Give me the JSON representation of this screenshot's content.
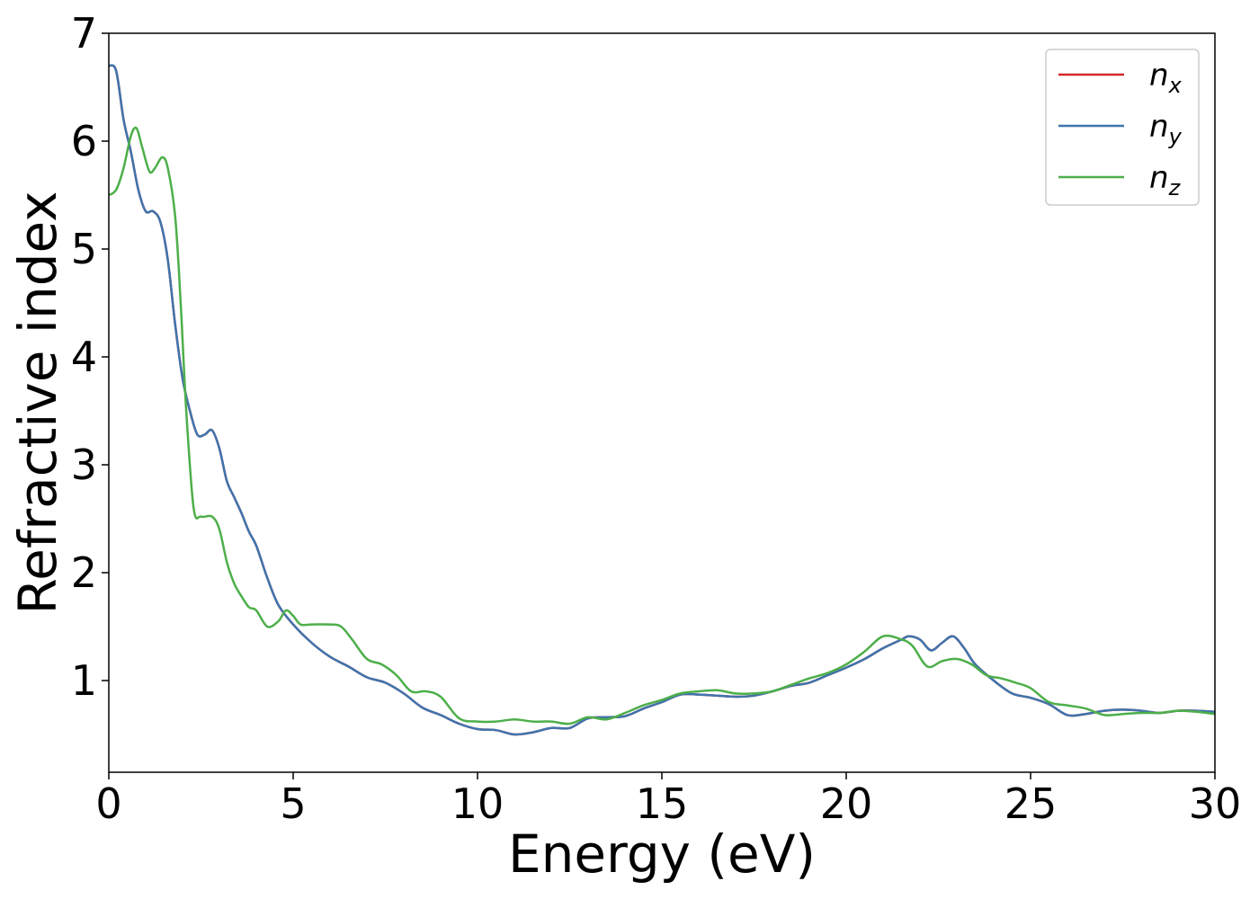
{
  "chart_data": {
    "type": "line",
    "xlabel": "Energy (eV)",
    "ylabel": "Refractive index",
    "xlim": [
      0,
      30
    ],
    "ylim": [
      0.15,
      7.0
    ],
    "xticks": [
      0,
      5,
      10,
      15,
      20,
      25,
      30
    ],
    "yticks": [
      1,
      2,
      3,
      4,
      5,
      6,
      7
    ],
    "grid": false,
    "legend_position": "top-right",
    "series": [
      {
        "name": "n_x",
        "label_main": "n",
        "label_sub": "x",
        "color": "#d62728",
        "x": [
          0,
          0.2,
          0.4,
          0.6,
          0.8,
          1.0,
          1.2,
          1.4,
          1.6,
          1.8,
          2.0,
          2.2,
          2.4,
          2.6,
          2.8,
          3.0,
          3.2,
          3.4,
          3.6,
          3.8,
          4.0,
          4.3,
          4.6,
          5.0,
          5.5,
          6.0,
          6.5,
          7.0,
          7.5,
          8.0,
          8.5,
          9.0,
          9.5,
          10.0,
          10.5,
          11.0,
          11.5,
          12.0,
          12.5,
          13.0,
          13.5,
          14.0,
          14.5,
          15.0,
          15.5,
          16.0,
          16.5,
          17.0,
          17.5,
          18.0,
          18.5,
          19.0,
          19.5,
          20.0,
          20.5,
          21.0,
          21.5,
          21.7,
          22.0,
          22.3,
          22.6,
          22.9,
          23.2,
          23.5,
          24.0,
          24.5,
          25.0,
          25.5,
          26.0,
          26.5,
          27.0,
          27.5,
          28.0,
          28.5,
          29.0,
          29.5,
          30.0
        ],
        "y": [
          6.7,
          6.65,
          6.2,
          5.9,
          5.55,
          5.35,
          5.35,
          5.25,
          4.9,
          4.3,
          3.8,
          3.5,
          3.28,
          3.28,
          3.32,
          3.15,
          2.85,
          2.7,
          2.55,
          2.38,
          2.25,
          1.95,
          1.7,
          1.52,
          1.35,
          1.22,
          1.13,
          1.03,
          0.98,
          0.88,
          0.75,
          0.68,
          0.6,
          0.55,
          0.54,
          0.5,
          0.52,
          0.56,
          0.56,
          0.65,
          0.66,
          0.67,
          0.74,
          0.8,
          0.87,
          0.87,
          0.86,
          0.85,
          0.86,
          0.9,
          0.95,
          0.98,
          1.05,
          1.12,
          1.2,
          1.3,
          1.38,
          1.41,
          1.38,
          1.28,
          1.35,
          1.41,
          1.3,
          1.15,
          1.0,
          0.88,
          0.84,
          0.78,
          0.68,
          0.69,
          0.72,
          0.73,
          0.72,
          0.7,
          0.72,
          0.72,
          0.71
        ]
      },
      {
        "name": "n_y",
        "label_main": "n",
        "label_sub": "y",
        "color": "#3f74ad",
        "x": [
          0,
          0.2,
          0.4,
          0.6,
          0.8,
          1.0,
          1.2,
          1.4,
          1.6,
          1.8,
          2.0,
          2.2,
          2.4,
          2.6,
          2.8,
          3.0,
          3.2,
          3.4,
          3.6,
          3.8,
          4.0,
          4.3,
          4.6,
          5.0,
          5.5,
          6.0,
          6.5,
          7.0,
          7.5,
          8.0,
          8.5,
          9.0,
          9.5,
          10.0,
          10.5,
          11.0,
          11.5,
          12.0,
          12.5,
          13.0,
          13.5,
          14.0,
          14.5,
          15.0,
          15.5,
          16.0,
          16.5,
          17.0,
          17.5,
          18.0,
          18.5,
          19.0,
          19.5,
          20.0,
          20.5,
          21.0,
          21.5,
          21.7,
          22.0,
          22.3,
          22.6,
          22.9,
          23.2,
          23.5,
          24.0,
          24.5,
          25.0,
          25.5,
          26.0,
          26.5,
          27.0,
          27.5,
          28.0,
          28.5,
          29.0,
          29.5,
          30.0
        ],
        "y": [
          6.7,
          6.65,
          6.2,
          5.9,
          5.55,
          5.35,
          5.35,
          5.25,
          4.9,
          4.3,
          3.8,
          3.5,
          3.28,
          3.28,
          3.32,
          3.15,
          2.85,
          2.7,
          2.55,
          2.38,
          2.25,
          1.95,
          1.7,
          1.52,
          1.35,
          1.22,
          1.13,
          1.03,
          0.98,
          0.88,
          0.75,
          0.68,
          0.6,
          0.55,
          0.54,
          0.5,
          0.52,
          0.56,
          0.56,
          0.65,
          0.66,
          0.67,
          0.74,
          0.8,
          0.87,
          0.87,
          0.86,
          0.85,
          0.86,
          0.9,
          0.95,
          0.98,
          1.05,
          1.12,
          1.2,
          1.3,
          1.38,
          1.41,
          1.38,
          1.28,
          1.35,
          1.41,
          1.3,
          1.15,
          1.0,
          0.88,
          0.84,
          0.78,
          0.68,
          0.69,
          0.72,
          0.73,
          0.72,
          0.7,
          0.72,
          0.72,
          0.71
        ]
      },
      {
        "name": "n_z",
        "label_main": "n",
        "label_sub": "z",
        "color": "#4daf4a",
        "x": [
          0,
          0.2,
          0.4,
          0.6,
          0.75,
          0.9,
          1.1,
          1.25,
          1.45,
          1.6,
          1.8,
          1.95,
          2.1,
          2.3,
          2.5,
          2.8,
          3.0,
          3.2,
          3.4,
          3.6,
          3.8,
          4.0,
          4.3,
          4.6,
          4.8,
          5.0,
          5.2,
          5.5,
          6.0,
          6.3,
          6.6,
          7.0,
          7.4,
          7.8,
          8.2,
          8.6,
          9.0,
          9.5,
          10.0,
          10.5,
          11.0,
          11.5,
          12.0,
          12.5,
          13.0,
          13.5,
          14.0,
          14.5,
          15.0,
          15.5,
          16.0,
          16.5,
          17.0,
          17.5,
          18.0,
          18.5,
          19.0,
          19.5,
          20.0,
          20.5,
          21.0,
          21.5,
          21.8,
          22.2,
          22.6,
          23.0,
          23.4,
          23.8,
          24.2,
          24.6,
          25.0,
          25.5,
          26.0,
          26.5,
          27.0,
          27.5,
          28.0,
          28.5,
          29.0,
          29.5,
          30.0
        ],
        "y": [
          5.5,
          5.55,
          5.75,
          6.05,
          6.12,
          5.95,
          5.72,
          5.75,
          5.85,
          5.75,
          5.3,
          4.5,
          3.5,
          2.6,
          2.52,
          2.52,
          2.4,
          2.1,
          1.9,
          1.78,
          1.68,
          1.65,
          1.5,
          1.55,
          1.65,
          1.6,
          1.52,
          1.52,
          1.52,
          1.5,
          1.38,
          1.2,
          1.15,
          1.05,
          0.9,
          0.9,
          0.85,
          0.65,
          0.62,
          0.62,
          0.64,
          0.62,
          0.62,
          0.6,
          0.66,
          0.64,
          0.7,
          0.77,
          0.82,
          0.88,
          0.9,
          0.91,
          0.88,
          0.88,
          0.9,
          0.96,
          1.02,
          1.07,
          1.15,
          1.27,
          1.41,
          1.38,
          1.32,
          1.13,
          1.18,
          1.2,
          1.15,
          1.05,
          1.02,
          0.98,
          0.93,
          0.8,
          0.77,
          0.74,
          0.68,
          0.69,
          0.7,
          0.7,
          0.72,
          0.71,
          0.69
        ]
      }
    ]
  }
}
